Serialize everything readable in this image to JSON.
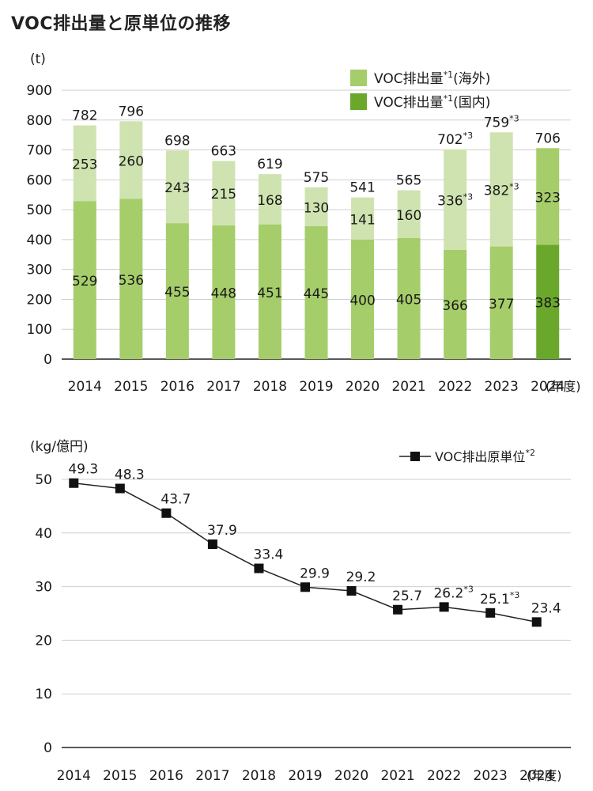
{
  "page": {
    "title": "VOC排出量と原単位の推移"
  },
  "colors": {
    "overseas": "#a5cd6a",
    "overseas_top": "#cfe3b0",
    "domestic": "#6aa82c",
    "axis": "#222222",
    "grid": "#cfcfcf",
    "line": "#222222"
  },
  "chart_data": [
    {
      "type": "bar",
      "stacked": true,
      "title": "",
      "unit_label": "(t)",
      "x_unit_label": "(年度)",
      "ylim": [
        0,
        900
      ],
      "yticks": [
        "0",
        "100",
        "200",
        "300",
        "400",
        "500",
        "600",
        "700",
        "800",
        "900"
      ],
      "grid": true,
      "legend_position": "top-right",
      "legend": [
        {
          "label": "VOC排出量",
          "sup": "*1",
          "suffix": "(海外)"
        },
        {
          "label": "VOC排出量",
          "sup": "*1",
          "suffix": "(国内)"
        }
      ],
      "categories": [
        "2014",
        "2015",
        "2016",
        "2017",
        "2018",
        "2019",
        "2020",
        "2021",
        "2022",
        "2023",
        "2024"
      ],
      "series": [
        {
          "values": [
            529,
            536,
            455,
            448,
            451,
            445,
            400,
            405,
            366,
            377,
            383
          ],
          "labels": [
            {
              "text": "529",
              "sup": ""
            },
            {
              "text": "536",
              "sup": ""
            },
            {
              "text": "455",
              "sup": ""
            },
            {
              "text": "448",
              "sup": ""
            },
            {
              "text": "451",
              "sup": ""
            },
            {
              "text": "445",
              "sup": ""
            },
            {
              "text": "400",
              "sup": ""
            },
            {
              "text": "405",
              "sup": ""
            },
            {
              "text": "366",
              "sup": ""
            },
            {
              "text": "377",
              "sup": ""
            },
            {
              "text": "383",
              "sup": ""
            }
          ]
        },
        {
          "values": [
            253,
            260,
            243,
            215,
            168,
            130,
            141,
            160,
            336,
            382,
            323
          ],
          "labels": [
            {
              "text": "253",
              "sup": ""
            },
            {
              "text": "260",
              "sup": ""
            },
            {
              "text": "243",
              "sup": ""
            },
            {
              "text": "215",
              "sup": ""
            },
            {
              "text": "168",
              "sup": ""
            },
            {
              "text": "130",
              "sup": ""
            },
            {
              "text": "141",
              "sup": ""
            },
            {
              "text": "160",
              "sup": ""
            },
            {
              "text": "336",
              "sup": "*3"
            },
            {
              "text": "382",
              "sup": "*3"
            },
            {
              "text": "323",
              "sup": ""
            }
          ]
        }
      ],
      "totals": [
        {
          "text": "782",
          "sup": ""
        },
        {
          "text": "796",
          "sup": ""
        },
        {
          "text": "698",
          "sup": ""
        },
        {
          "text": "663",
          "sup": ""
        },
        {
          "text": "619",
          "sup": ""
        },
        {
          "text": "575",
          "sup": ""
        },
        {
          "text": "541",
          "sup": ""
        },
        {
          "text": "565",
          "sup": ""
        },
        {
          "text": "702",
          "sup": "*3"
        },
        {
          "text": "759",
          "sup": "*3"
        },
        {
          "text": "706",
          "sup": ""
        }
      ]
    },
    {
      "type": "line",
      "title": "",
      "unit_label": "(kg/億円)",
      "x_unit_label": "(年度)",
      "ylim": [
        0,
        50
      ],
      "yticks": [
        "0",
        "10",
        "20",
        "30",
        "40",
        "50"
      ],
      "grid": true,
      "legend_position": "top-right",
      "legend": [
        {
          "label": "VOC排出原単位",
          "sup": "*2"
        }
      ],
      "categories": [
        "2014",
        "2015",
        "2016",
        "2017",
        "2018",
        "2019",
        "2020",
        "2021",
        "2022",
        "2023",
        "2024"
      ],
      "series": [
        {
          "values": [
            49.3,
            48.3,
            43.7,
            37.9,
            33.4,
            29.9,
            29.2,
            25.7,
            26.2,
            25.1,
            23.4
          ],
          "labels": [
            {
              "text": "49.3",
              "sup": ""
            },
            {
              "text": "48.3",
              "sup": ""
            },
            {
              "text": "43.7",
              "sup": ""
            },
            {
              "text": "37.9",
              "sup": ""
            },
            {
              "text": "33.4",
              "sup": ""
            },
            {
              "text": "29.9",
              "sup": ""
            },
            {
              "text": "29.2",
              "sup": ""
            },
            {
              "text": "25.7",
              "sup": ""
            },
            {
              "text": "26.2",
              "sup": "*3"
            },
            {
              "text": "25.1",
              "sup": "*3"
            },
            {
              "text": "23.4",
              "sup": ""
            }
          ]
        }
      ]
    }
  ]
}
